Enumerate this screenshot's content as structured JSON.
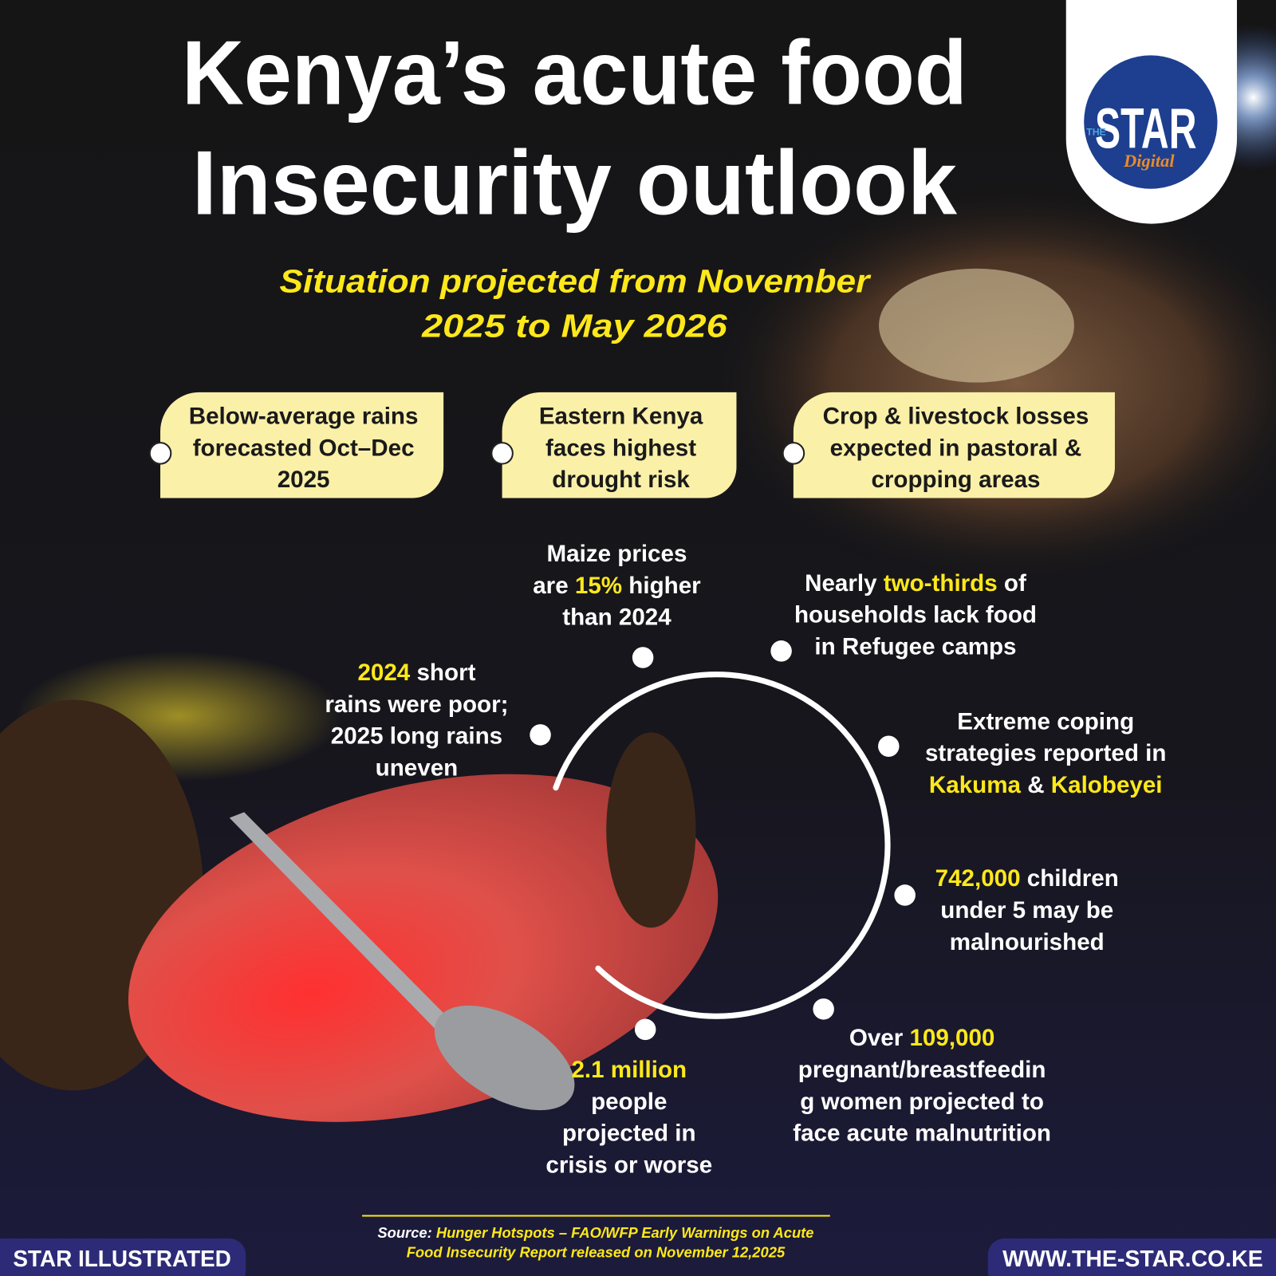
{
  "header": {
    "title_lines": [
      "Kenya’s acute food",
      "Insecurity outlook"
    ],
    "subtitle_lines": [
      "Situation projected from November",
      "2025 to May 2026"
    ]
  },
  "logo": {
    "small": "THE",
    "main": "STAR",
    "sub": "Digital"
  },
  "highlight_color": "#ffe81a",
  "callouts": [
    [
      "Below-average rains",
      "forecasted Oct–Dec",
      "2025"
    ],
    [
      "Eastern Kenya",
      "faces highest",
      "drought risk"
    ],
    [
      "Crop & livestock losses",
      "expected in pastoral &",
      "cropping areas"
    ]
  ],
  "facts": [
    [
      [
        {
          "text": "Maize prices",
          "highlight": false
        }
      ],
      [
        {
          "text": "are ",
          "highlight": false
        },
        {
          "text": "15%",
          "highlight": true
        },
        {
          "text": " higher",
          "highlight": false
        }
      ],
      [
        {
          "text": "than 2024",
          "highlight": false
        }
      ]
    ],
    [
      [
        {
          "text": "Nearly ",
          "highlight": false
        },
        {
          "text": "two-thirds",
          "highlight": true
        },
        {
          "text": " of",
          "highlight": false
        }
      ],
      [
        {
          "text": "households lack food",
          "highlight": false
        }
      ],
      [
        {
          "text": "in Refugee camps",
          "highlight": false
        }
      ]
    ],
    [
      [
        {
          "text": "Extreme coping",
          "highlight": false
        }
      ],
      [
        {
          "text": "strategies reported in",
          "highlight": false
        }
      ],
      [
        {
          "text": "Kakuma",
          "highlight": true
        },
        {
          "text": " & ",
          "highlight": false
        },
        {
          "text": "Kalobeyei",
          "highlight": true
        }
      ]
    ],
    [
      [
        {
          "text": "742,000",
          "highlight": true
        },
        {
          "text": " children",
          "highlight": false
        }
      ],
      [
        {
          "text": "under 5 may be",
          "highlight": false
        }
      ],
      [
        {
          "text": "malnourished",
          "highlight": false
        }
      ]
    ],
    [
      [
        {
          "text": "Over ",
          "highlight": false
        },
        {
          "text": "109,000",
          "highlight": true
        }
      ],
      [
        {
          "text": "pregnant/breastfeedin",
          "highlight": false
        }
      ],
      [
        {
          "text": "g women projected to",
          "highlight": false
        }
      ],
      [
        {
          "text": "face acute malnutrition",
          "highlight": false
        }
      ]
    ],
    [
      [
        {
          "text": "2.1 million",
          "highlight": true
        }
      ],
      [
        {
          "text": "people",
          "highlight": false
        }
      ],
      [
        {
          "text": "projected in",
          "highlight": false
        }
      ],
      [
        {
          "text": "crisis or worse",
          "highlight": false
        }
      ]
    ],
    [
      [
        {
          "text": "2024",
          "highlight": true
        },
        {
          "text": " short",
          "highlight": false
        }
      ],
      [
        {
          "text": "rains were poor;",
          "highlight": false
        }
      ],
      [
        {
          "text": "2025 long rains",
          "highlight": false
        }
      ],
      [
        {
          "text": "uneven",
          "highlight": false
        }
      ]
    ]
  ],
  "source": {
    "label": "Source:",
    "lines": [
      "Hunger Hotspots – FAO/WFP Early Warnings on Acute",
      "Food Insecurity Report released on November 12,2025"
    ]
  },
  "footer": {
    "left": "STAR ILLUSTRATED",
    "right": "WWW.THE-STAR.CO.KE"
  }
}
